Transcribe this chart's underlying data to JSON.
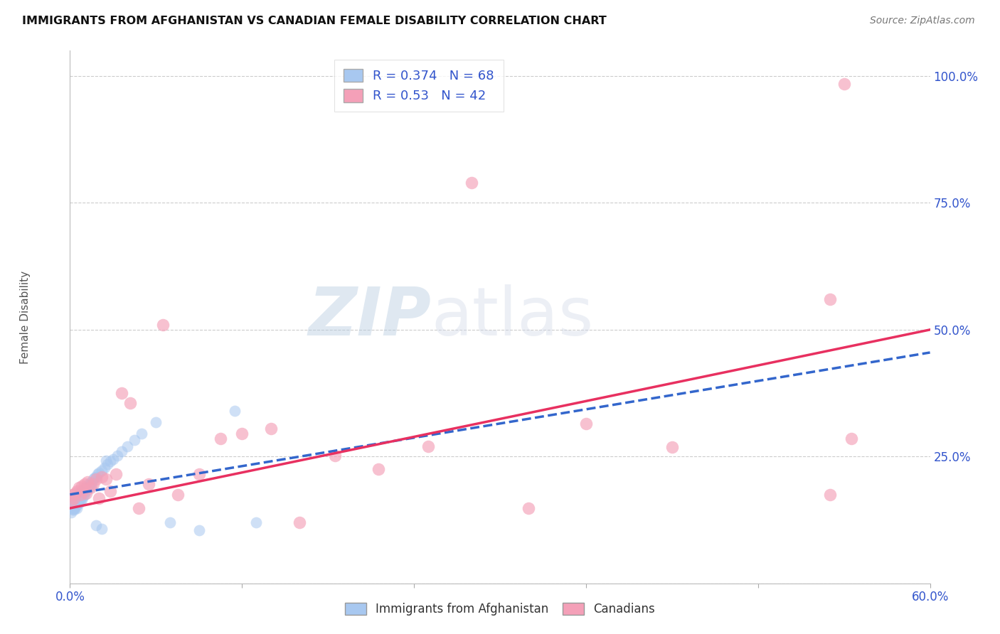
{
  "title": "IMMIGRANTS FROM AFGHANISTAN VS CANADIAN FEMALE DISABILITY CORRELATION CHART",
  "source": "Source: ZipAtlas.com",
  "ylabel": "Female Disability",
  "x_min": 0.0,
  "x_max": 0.6,
  "y_min": 0.0,
  "y_max": 1.05,
  "x_ticks": [
    0.0,
    0.12,
    0.24,
    0.36,
    0.48,
    0.6
  ],
  "x_tick_labels": [
    "0.0%",
    "",
    "",
    "",
    "",
    "60.0%"
  ],
  "y_ticks": [
    0.0,
    0.25,
    0.5,
    0.75,
    1.0
  ],
  "y_tick_labels": [
    "",
    "25.0%",
    "50.0%",
    "75.0%",
    "100.0%"
  ],
  "blue_R": 0.374,
  "blue_N": 68,
  "pink_R": 0.53,
  "pink_N": 42,
  "blue_color": "#a8c8f0",
  "pink_color": "#f4a0b8",
  "blue_line_color": "#3366cc",
  "pink_line_color": "#e83060",
  "watermark_zip": "ZIP",
  "watermark_atlas": "atlas",
  "legend_label_blue": "Immigrants from Afghanistan",
  "legend_label_pink": "Canadians",
  "blue_scatter_x": [
    0.0005,
    0.001,
    0.001,
    0.001,
    0.002,
    0.002,
    0.002,
    0.002,
    0.003,
    0.003,
    0.003,
    0.003,
    0.003,
    0.004,
    0.004,
    0.004,
    0.004,
    0.005,
    0.005,
    0.005,
    0.005,
    0.006,
    0.006,
    0.006,
    0.006,
    0.007,
    0.007,
    0.007,
    0.008,
    0.008,
    0.008,
    0.009,
    0.009,
    0.01,
    0.01,
    0.01,
    0.011,
    0.011,
    0.012,
    0.012,
    0.013,
    0.013,
    0.014,
    0.015,
    0.015,
    0.016,
    0.017,
    0.018,
    0.019,
    0.02,
    0.022,
    0.024,
    0.026,
    0.028,
    0.03,
    0.033,
    0.036,
    0.04,
    0.045,
    0.05,
    0.06,
    0.07,
    0.09,
    0.115,
    0.13,
    0.025,
    0.018,
    0.022
  ],
  "blue_scatter_y": [
    0.155,
    0.148,
    0.162,
    0.14,
    0.15,
    0.165,
    0.145,
    0.158,
    0.16,
    0.148,
    0.155,
    0.168,
    0.145,
    0.158,
    0.165,
    0.15,
    0.172,
    0.16,
    0.148,
    0.17,
    0.155,
    0.165,
    0.172,
    0.158,
    0.178,
    0.168,
    0.175,
    0.162,
    0.178,
    0.165,
    0.182,
    0.172,
    0.178,
    0.18,
    0.175,
    0.185,
    0.182,
    0.19,
    0.188,
    0.192,
    0.195,
    0.188,
    0.198,
    0.2,
    0.192,
    0.205,
    0.208,
    0.21,
    0.215,
    0.218,
    0.222,
    0.228,
    0.235,
    0.24,
    0.245,
    0.252,
    0.26,
    0.27,
    0.282,
    0.295,
    0.318,
    0.12,
    0.105,
    0.34,
    0.12,
    0.242,
    0.115,
    0.108
  ],
  "pink_scatter_x": [
    0.001,
    0.002,
    0.003,
    0.004,
    0.005,
    0.006,
    0.007,
    0.008,
    0.009,
    0.01,
    0.011,
    0.012,
    0.014,
    0.016,
    0.018,
    0.02,
    0.022,
    0.025,
    0.028,
    0.032,
    0.036,
    0.042,
    0.048,
    0.055,
    0.065,
    0.075,
    0.09,
    0.105,
    0.12,
    0.14,
    0.16,
    0.185,
    0.215,
    0.25,
    0.28,
    0.32,
    0.36,
    0.42,
    0.53,
    0.53,
    0.54,
    0.545
  ],
  "pink_scatter_y": [
    0.16,
    0.175,
    0.168,
    0.178,
    0.182,
    0.188,
    0.175,
    0.192,
    0.185,
    0.195,
    0.178,
    0.2,
    0.188,
    0.195,
    0.205,
    0.168,
    0.21,
    0.205,
    0.182,
    0.215,
    0.375,
    0.355,
    0.148,
    0.195,
    0.51,
    0.175,
    0.215,
    0.285,
    0.295,
    0.305,
    0.12,
    0.252,
    0.225,
    0.27,
    0.79,
    0.148,
    0.315,
    0.268,
    0.175,
    0.56,
    0.985,
    0.285
  ],
  "blue_line_x0": 0.0,
  "blue_line_y0": 0.175,
  "blue_line_x1": 0.6,
  "blue_line_y1": 0.455,
  "pink_line_x0": 0.0,
  "pink_line_y0": 0.148,
  "pink_line_x1": 0.6,
  "pink_line_y1": 0.5
}
